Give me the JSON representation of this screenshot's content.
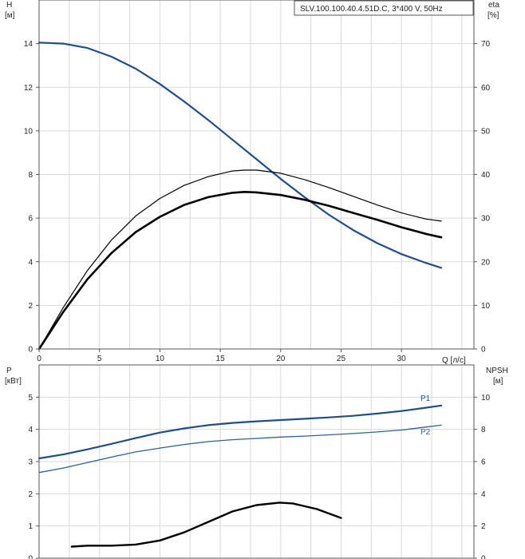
{
  "chart_data": [
    {
      "type": "line",
      "title": "SLV.100.100.40.4.51D.C, 3*400 V, 50Hz",
      "xlabel": "Q [л/с]",
      "ylabel": "H",
      "ylabel_unit": "[м]",
      "y2label": "eta",
      "y2label_unit": "[%]",
      "xlim": [
        0,
        36
      ],
      "ylim": [
        0,
        16
      ],
      "y2lim": [
        0,
        80
      ],
      "xticks": [
        0,
        5,
        10,
        15,
        20,
        25,
        30
      ],
      "yticks": [
        0,
        2,
        4,
        6,
        8,
        10,
        12,
        14
      ],
      "y2ticks": [
        0,
        10,
        20,
        30,
        40,
        50,
        60,
        70
      ],
      "grid": true,
      "series": [
        {
          "axis": "left",
          "color": "#1f4e8c",
          "x": [
            0,
            2,
            4,
            6,
            8,
            10,
            12,
            14,
            16,
            18,
            20,
            22,
            24,
            26,
            28,
            30,
            32,
            33.3
          ],
          "values": [
            14.05,
            14.0,
            13.8,
            13.4,
            12.85,
            12.15,
            11.35,
            10.5,
            9.6,
            8.7,
            7.8,
            6.95,
            6.15,
            5.45,
            4.85,
            4.35,
            3.95,
            3.72
          ]
        },
        {
          "axis": "right",
          "color": "#000000",
          "x": [
            0,
            2,
            4,
            6,
            8,
            10,
            12,
            14,
            16,
            17,
            18,
            20,
            22,
            24,
            26,
            28,
            30,
            32,
            33.3
          ],
          "values": [
            0,
            9.5,
            18,
            25,
            30.5,
            34.5,
            37.5,
            39.5,
            40.8,
            41,
            41,
            40.3,
            38.8,
            37,
            35,
            33,
            31.2,
            29.8,
            29.3
          ]
        },
        {
          "axis": "right",
          "color": "#000000",
          "x": [
            0,
            2,
            4,
            6,
            8,
            10,
            12,
            14,
            16,
            17,
            18,
            20,
            22,
            24,
            26,
            28,
            30,
            32,
            33.3
          ],
          "values": [
            0,
            8.5,
            16,
            22,
            26.8,
            30.3,
            33,
            34.8,
            35.8,
            36,
            35.9,
            35.3,
            34.2,
            32.8,
            31.2,
            29.6,
            27.9,
            26.4,
            25.6
          ]
        }
      ]
    },
    {
      "type": "line",
      "xlabel": "",
      "ylabel": "P",
      "ylabel_unit": "[кВт]",
      "y2label": "NPSH",
      "y2label_unit": "[м]",
      "xlim": [
        0,
        36
      ],
      "ylim": [
        0,
        6
      ],
      "y2lim": [
        0,
        12
      ],
      "yticks": [
        0,
        1,
        2,
        3,
        4,
        5
      ],
      "y2ticks": [
        0,
        2,
        4,
        6,
        8,
        10
      ],
      "grid": true,
      "series": [
        {
          "name": "P1",
          "axis": "left",
          "color": "#1f4e8c",
          "x": [
            0,
            2,
            4,
            6,
            8,
            10,
            12,
            14,
            16,
            18,
            20,
            22,
            24,
            26,
            28,
            30,
            32,
            33.3
          ],
          "values": [
            3.1,
            3.22,
            3.38,
            3.55,
            3.73,
            3.9,
            4.03,
            4.13,
            4.2,
            4.25,
            4.29,
            4.33,
            4.37,
            4.42,
            4.49,
            4.57,
            4.67,
            4.74
          ]
        },
        {
          "name": "P2",
          "axis": "left",
          "color": "#2f5f9e",
          "x": [
            0,
            2,
            4,
            6,
            8,
            10,
            12,
            14,
            16,
            18,
            20,
            22,
            24,
            26,
            28,
            30,
            32,
            33.3
          ],
          "values": [
            2.66,
            2.8,
            2.97,
            3.14,
            3.3,
            3.42,
            3.53,
            3.62,
            3.68,
            3.72,
            3.76,
            3.79,
            3.83,
            3.87,
            3.92,
            3.98,
            4.07,
            4.13
          ]
        },
        {
          "name": "NPSH",
          "axis": "right",
          "color": "#000000",
          "x": [
            2.7,
            4,
            6,
            8,
            10,
            12,
            14,
            16,
            18,
            19.9,
            21,
            23,
            25
          ],
          "values": [
            0.72,
            0.78,
            0.78,
            0.85,
            1.1,
            1.6,
            2.25,
            2.9,
            3.3,
            3.45,
            3.4,
            3.05,
            2.5
          ]
        }
      ]
    }
  ]
}
